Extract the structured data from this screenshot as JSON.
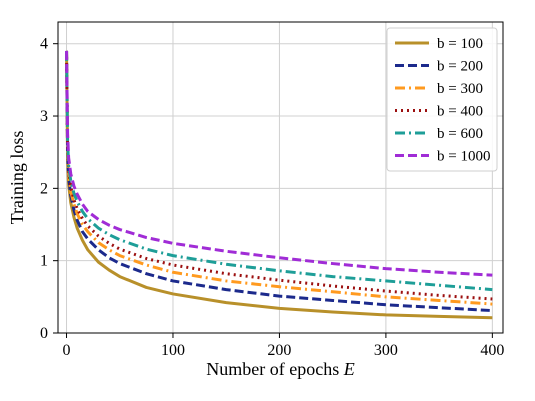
{
  "chart_data": {
    "type": "line",
    "title": "",
    "xlabel": "Number of epochs ",
    "xlabel_var": "E",
    "ylabel": "Training loss",
    "xlim": [
      -8,
      410
    ],
    "ylim": [
      0,
      4.3
    ],
    "xticks": [
      0,
      100,
      200,
      300,
      400
    ],
    "yticks": [
      0,
      1,
      2,
      3,
      4
    ],
    "grid": true,
    "legend_position": "top-right",
    "series": [
      {
        "name": "b = 100",
        "color": "#b8902a",
        "dash": "solid",
        "x": [
          0,
          1,
          2,
          4,
          7,
          10,
          15,
          20,
          30,
          40,
          50,
          75,
          100,
          150,
          200,
          250,
          300,
          350,
          400
        ],
        "values": [
          3.9,
          2.4,
          2.05,
          1.8,
          1.6,
          1.45,
          1.28,
          1.15,
          0.98,
          0.87,
          0.78,
          0.63,
          0.54,
          0.42,
          0.34,
          0.29,
          0.25,
          0.23,
          0.21
        ]
      },
      {
        "name": "b = 200",
        "color": "#1c2a8c",
        "dash": "dashed",
        "x": [
          0,
          1,
          2,
          4,
          7,
          10,
          15,
          20,
          30,
          40,
          50,
          75,
          100,
          150,
          200,
          250,
          300,
          350,
          400
        ],
        "values": [
          3.9,
          2.5,
          2.15,
          1.9,
          1.7,
          1.56,
          1.4,
          1.3,
          1.15,
          1.04,
          0.96,
          0.82,
          0.72,
          0.6,
          0.51,
          0.45,
          0.39,
          0.35,
          0.31
        ]
      },
      {
        "name": "b = 300",
        "color": "#ff9a1f",
        "dash": "dashdot",
        "x": [
          0,
          1,
          2,
          4,
          7,
          10,
          15,
          20,
          30,
          40,
          50,
          75,
          100,
          150,
          200,
          250,
          300,
          350,
          400
        ],
        "values": [
          3.9,
          2.55,
          2.2,
          1.96,
          1.78,
          1.65,
          1.5,
          1.4,
          1.25,
          1.15,
          1.07,
          0.94,
          0.84,
          0.72,
          0.64,
          0.57,
          0.5,
          0.45,
          0.4
        ]
      },
      {
        "name": "b = 400",
        "color": "#9c1010",
        "dash": "dotted",
        "x": [
          0,
          1,
          2,
          4,
          7,
          10,
          15,
          20,
          30,
          40,
          50,
          75,
          100,
          150,
          200,
          250,
          300,
          350,
          400
        ],
        "values": [
          3.9,
          2.6,
          2.25,
          2.02,
          1.84,
          1.72,
          1.58,
          1.48,
          1.34,
          1.24,
          1.16,
          1.03,
          0.94,
          0.82,
          0.73,
          0.65,
          0.58,
          0.52,
          0.47
        ]
      },
      {
        "name": "b = 600",
        "color": "#1e9e98",
        "dash": "dashdot",
        "x": [
          0,
          1,
          2,
          4,
          7,
          10,
          15,
          20,
          30,
          40,
          50,
          75,
          100,
          150,
          200,
          250,
          300,
          350,
          400
        ],
        "values": [
          3.9,
          2.65,
          2.32,
          2.1,
          1.93,
          1.82,
          1.68,
          1.58,
          1.45,
          1.36,
          1.29,
          1.16,
          1.07,
          0.95,
          0.86,
          0.78,
          0.72,
          0.66,
          0.6
        ]
      },
      {
        "name": "b = 1000",
        "color": "#a02cd6",
        "dash": "dashed",
        "x": [
          0,
          1,
          2,
          4,
          7,
          10,
          15,
          20,
          30,
          40,
          50,
          75,
          100,
          150,
          200,
          250,
          300,
          350,
          400
        ],
        "values": [
          3.9,
          2.75,
          2.42,
          2.2,
          2.03,
          1.92,
          1.78,
          1.68,
          1.57,
          1.49,
          1.43,
          1.32,
          1.24,
          1.13,
          1.04,
          0.96,
          0.89,
          0.84,
          0.8
        ]
      }
    ]
  }
}
